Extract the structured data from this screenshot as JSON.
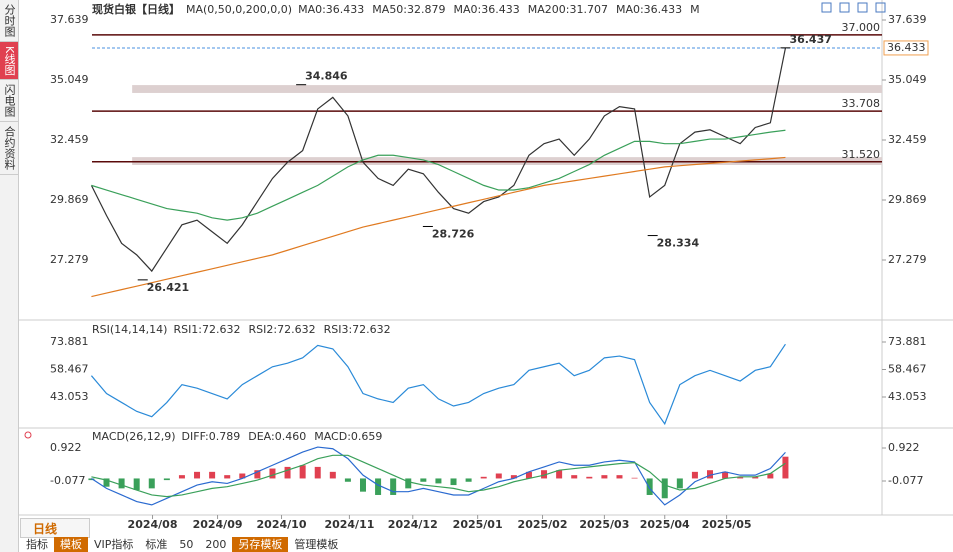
{
  "ui": {
    "sidebar": [
      "分时图",
      "K线图",
      "闪电图",
      "合约资料"
    ],
    "period_tab": "日线",
    "toolbar": [
      "指标",
      "模板",
      "VIP指标",
      "标准",
      "50",
      "200",
      "另存模板",
      "管理模板"
    ]
  },
  "chart_data": [
    {
      "type": "line",
      "title": "现货白银【日线】",
      "params": "MA(0,50,0,200,0,0)",
      "header": [
        {
          "text": "MA0:36.433",
          "color": "#4a90e2"
        },
        {
          "text": "MA50:32.879",
          "color": "#4a90e2"
        },
        {
          "text": "MA0:36.433",
          "color": "#4a90e2"
        },
        {
          "text": "MA200:31.707",
          "color": "#f0a050"
        },
        {
          "text": "MA0:36.433",
          "color": "#e0a0d8"
        },
        {
          "text": "M",
          "color": "#e0a0d8"
        }
      ],
      "xlim": [
        -4.8,
        52.4
      ],
      "xticks": [
        {
          "value": 4.05,
          "label": "2024/08"
        },
        {
          "value": 8.36,
          "label": "2024/09"
        },
        {
          "value": 12.6,
          "label": "2024/10"
        },
        {
          "value": 17.1,
          "label": "2024/11"
        },
        {
          "value": 21.3,
          "label": "2024/12"
        },
        {
          "value": 25.6,
          "label": "2025/01"
        },
        {
          "value": 29.9,
          "label": "2025/02"
        },
        {
          "value": 34.0,
          "label": "2025/03"
        },
        {
          "value": 38.0,
          "label": "2025/04"
        },
        {
          "value": 42.1,
          "label": "2025/05"
        }
      ],
      "ylim": [
        24.775,
        38.287
      ],
      "yticks": [
        37.639,
        35.049,
        32.459,
        29.869,
        27.279
      ],
      "series": [
        {
          "color": "#333333",
          "values": [
            30.5,
            29.2,
            28.0,
            27.5,
            26.8,
            27.8,
            28.8,
            29.0,
            28.5,
            28.0,
            28.8,
            29.8,
            30.8,
            31.5,
            32.0,
            33.8,
            34.3,
            33.5,
            31.5,
            30.8,
            30.5,
            31.2,
            31.0,
            30.2,
            29.5,
            29.3,
            29.8,
            30.0,
            30.5,
            31.8,
            32.3,
            32.5,
            31.8,
            32.5,
            33.5,
            33.9,
            33.8,
            30.0,
            30.5,
            32.3,
            32.8,
            32.9,
            32.6,
            32.3,
            33.0,
            33.2,
            36.433
          ]
        },
        {
          "color": "#3aa05a",
          "values": [
            30.5,
            30.3,
            30.1,
            29.9,
            29.7,
            29.5,
            29.4,
            29.3,
            29.1,
            29.0,
            29.1,
            29.3,
            29.6,
            29.9,
            30.2,
            30.5,
            30.9,
            31.3,
            31.6,
            31.8,
            31.8,
            31.7,
            31.6,
            31.4,
            31.1,
            30.8,
            30.5,
            30.3,
            30.3,
            30.4,
            30.6,
            30.8,
            31.1,
            31.4,
            31.8,
            32.1,
            32.4,
            32.4,
            32.3,
            32.3,
            32.4,
            32.5,
            32.5,
            32.6,
            32.7,
            32.8,
            32.879
          ]
        },
        {
          "color": "#e07a20",
          "values": [
            25.7,
            25.85,
            26.0,
            26.15,
            26.3,
            26.45,
            26.6,
            26.75,
            26.9,
            27.05,
            27.2,
            27.35,
            27.5,
            27.7,
            27.9,
            28.1,
            28.3,
            28.5,
            28.7,
            28.85,
            29.0,
            29.15,
            29.3,
            29.45,
            29.6,
            29.75,
            29.9,
            30.05,
            30.2,
            30.35,
            30.5,
            30.6,
            30.7,
            30.8,
            30.9,
            31.0,
            31.1,
            31.2,
            31.3,
            31.35,
            31.4,
            31.45,
            31.5,
            31.55,
            31.6,
            31.65,
            31.707
          ]
        }
      ],
      "zones": [
        {
          "from": 34.49,
          "to": 34.83
        },
        {
          "from": 31.38,
          "to": 31.72
        }
      ],
      "levels": [
        {
          "value": 37,
          "label": "37.000"
        },
        33.708,
        {
          "value": 31.52,
          "label": "31.520"
        }
      ],
      "last": 36.433,
      "annotations": [
        {
          "x": 3.4,
          "value": 26.421,
          "color": "#3aa05a"
        },
        {
          "x": 13.9,
          "value": 34.846,
          "color": "#e04050"
        },
        {
          "x": 22.3,
          "value": 28.726,
          "color": "#3aa05a"
        },
        {
          "x": 37.2,
          "value": 28.334,
          "color": "#3aa05a"
        },
        {
          "x": 46,
          "value": 36.437,
          "color": "#e04050"
        }
      ]
    },
    {
      "type": "line",
      "title": "RSI(14,14,14)",
      "header": [
        {
          "text": "RSI1:72.632",
          "color": "#4a90e2"
        },
        {
          "text": "RSI2:72.632",
          "color": "#4a90e2"
        },
        {
          "text": "RSI3:72.632",
          "color": "#4a90e2"
        }
      ],
      "xlim": [
        -4.8,
        52.4
      ],
      "ylim": [
        27.36,
        85.09
      ],
      "yticks": [
        73.881,
        58.467,
        43.053
      ],
      "series": [
        {
          "color": "#2a8ad8",
          "values": [
            55,
            45,
            40,
            35,
            32,
            40,
            50,
            48,
            45,
            42,
            50,
            55,
            60,
            62,
            65,
            72,
            70,
            60,
            45,
            42,
            40,
            48,
            50,
            42,
            38,
            40,
            45,
            48,
            50,
            58,
            60,
            62,
            55,
            58,
            65,
            66,
            64,
            40,
            28,
            50,
            55,
            58,
            55,
            52,
            58,
            60,
            72.632
          ]
        }
      ]
    },
    {
      "type": "combo",
      "title": "MACD(26,12,9)",
      "header": [
        {
          "text": "DIFF:0.789",
          "color": "#4a90e2"
        },
        {
          "text": "DEA:0.460",
          "color": "#3aa0a0"
        },
        {
          "text": "MACD:0.659",
          "color": "#4a90e2"
        }
      ],
      "xlim": [
        -4.8,
        52.4
      ],
      "ylim": [
        -1.046,
        1.013
      ],
      "yticks": [
        0.922,
        -0.077
      ],
      "series": [
        {
          "type": "bar",
          "color": "#e04050",
          "negative_color": "#3aa05a",
          "values": [
            -0.05,
            -0.25,
            -0.3,
            -0.35,
            -0.3,
            -0.05,
            0.1,
            0.2,
            0.2,
            0.1,
            0.15,
            0.25,
            0.3,
            0.35,
            0.4,
            0.35,
            0.2,
            -0.1,
            -0.4,
            -0.5,
            -0.5,
            -0.3,
            -0.1,
            -0.15,
            -0.2,
            -0.1,
            0.05,
            0.15,
            0.1,
            0.2,
            0.25,
            0.25,
            0.1,
            0.05,
            0.1,
            0.1,
            0.02,
            -0.5,
            -0.6,
            -0.3,
            0.2,
            0.25,
            0.2,
            0.05,
            0.05,
            0.15,
            0.659
          ]
        },
        {
          "type": "line",
          "color": "#2a6ad0",
          "values": [
            0.0,
            -0.3,
            -0.5,
            -0.7,
            -0.8,
            -0.6,
            -0.4,
            -0.2,
            -0.1,
            -0.15,
            0.0,
            0.2,
            0.4,
            0.6,
            0.8,
            0.95,
            0.9,
            0.6,
            0.1,
            -0.2,
            -0.4,
            -0.4,
            -0.3,
            -0.4,
            -0.5,
            -0.5,
            -0.3,
            -0.1,
            0.0,
            0.2,
            0.35,
            0.5,
            0.4,
            0.4,
            0.5,
            0.55,
            0.5,
            -0.3,
            -0.8,
            -0.5,
            -0.1,
            0.1,
            0.2,
            0.1,
            0.1,
            0.3,
            0.789
          ]
        },
        {
          "type": "line",
          "color": "#3aa05a",
          "values": [
            0.05,
            -0.05,
            -0.2,
            -0.35,
            -0.5,
            -0.55,
            -0.5,
            -0.4,
            -0.3,
            -0.25,
            -0.15,
            -0.05,
            0.1,
            0.25,
            0.4,
            0.6,
            0.7,
            0.7,
            0.5,
            0.3,
            0.1,
            -0.1,
            -0.2,
            -0.25,
            -0.3,
            -0.4,
            -0.35,
            -0.25,
            -0.1,
            0.0,
            0.1,
            0.25,
            0.3,
            0.35,
            0.4,
            0.45,
            0.48,
            0.2,
            -0.2,
            -0.35,
            -0.3,
            -0.15,
            0.0,
            0.05,
            0.05,
            0.15,
            0.46
          ]
        }
      ]
    }
  ]
}
